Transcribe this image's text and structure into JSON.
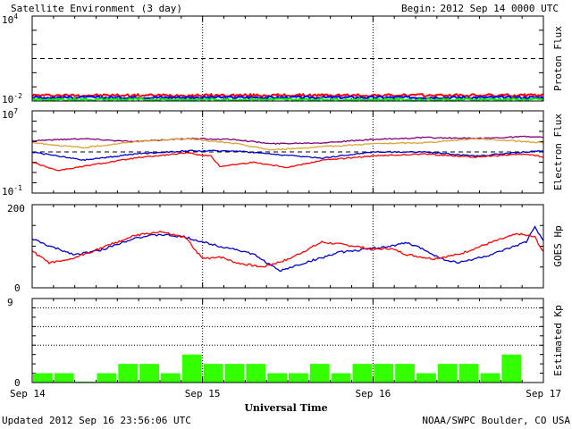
{
  "header": {
    "title": "Satellite Environment (3 day)",
    "begin_label": "Begin:",
    "begin_value": "2012 Sep 14 0000 UTC"
  },
  "footer": {
    "updated": "Updated 2012 Sep 16 23:56:06 UTC",
    "credit": "NOAA/SWPC Boulder, CO USA"
  },
  "x_axis": {
    "label": "Universal Time",
    "ticks": [
      "Sep 14",
      "Sep 15",
      "Sep 16",
      "Sep 17"
    ]
  },
  "chart_data": [
    {
      "type": "line",
      "name": "proton-flux",
      "ylabel": "Proton Flux",
      "scale": "log",
      "ylim_exp": [
        -2,
        4
      ],
      "tick_labels": [
        {
          "base": "10",
          "exp": "4"
        },
        {
          "base": "10",
          "exp": "-2"
        }
      ],
      "threshold_exp": 1,
      "x_days": [
        0,
        3
      ],
      "series": [
        {
          "color": "#ff0000",
          "points": [
            [
              0,
              -1.6
            ],
            [
              3,
              -1.6
            ]
          ]
        },
        {
          "color": "#0000ff",
          "points": [
            [
              0,
              -1.75
            ],
            [
              3,
              -1.75
            ]
          ]
        },
        {
          "color": "#00ee00",
          "points": [
            [
              0,
              -1.9
            ],
            [
              3,
              -1.9
            ]
          ]
        }
      ]
    },
    {
      "type": "line",
      "name": "electron-flux",
      "ylabel": "Electron Flux",
      "scale": "log",
      "ylim_exp": [
        -1,
        7
      ],
      "tick_labels": [
        {
          "base": "10",
          "exp": "7"
        },
        {
          "base": "10",
          "exp": "-1"
        }
      ],
      "threshold_exp": 3,
      "series": [
        {
          "color": "#800080",
          "points": [
            [
              0,
              4.1
            ],
            [
              0.3,
              4.3
            ],
            [
              0.6,
              4.0
            ],
            [
              0.9,
              4.3
            ],
            [
              1.2,
              4.2
            ],
            [
              1.4,
              3.8
            ],
            [
              1.7,
              3.9
            ],
            [
              2.0,
              4.2
            ],
            [
              2.3,
              4.4
            ],
            [
              2.6,
              4.3
            ],
            [
              2.9,
              4.5
            ],
            [
              3,
              4.4
            ]
          ]
        },
        {
          "color": "#e0a030",
          "points": [
            [
              0,
              3.9
            ],
            [
              0.3,
              3.4
            ],
            [
              0.6,
              4.0
            ],
            [
              0.9,
              4.3
            ],
            [
              1.2,
              3.8
            ],
            [
              1.4,
              3.2
            ],
            [
              1.7,
              3.5
            ],
            [
              2.0,
              3.8
            ],
            [
              2.3,
              3.9
            ],
            [
              2.6,
              4.3
            ],
            [
              2.9,
              4.0
            ],
            [
              3,
              3.9
            ]
          ]
        },
        {
          "color": "#0000cc",
          "points": [
            [
              0,
              3.0
            ],
            [
              0.3,
              2.2
            ],
            [
              0.6,
              2.8
            ],
            [
              0.9,
              3.1
            ],
            [
              1.2,
              3.1
            ],
            [
              1.4,
              2.8
            ],
            [
              1.7,
              2.4
            ],
            [
              2.0,
              3.0
            ],
            [
              2.3,
              3.0
            ],
            [
              2.6,
              2.6
            ],
            [
              2.9,
              3.0
            ],
            [
              3,
              3.1
            ]
          ]
        },
        {
          "color": "#ff0000",
          "points": [
            [
              0,
              2.0
            ],
            [
              0.15,
              1.2
            ],
            [
              0.3,
              1.6
            ],
            [
              0.6,
              2.4
            ],
            [
              0.9,
              2.9
            ],
            [
              1.05,
              2.6
            ],
            [
              1.1,
              1.6
            ],
            [
              1.3,
              2.0
            ],
            [
              1.5,
              1.5
            ],
            [
              1.7,
              2.2
            ],
            [
              2.0,
              2.6
            ],
            [
              2.3,
              2.8
            ],
            [
              2.6,
              2.5
            ],
            [
              2.9,
              2.8
            ],
            [
              3,
              2.5
            ]
          ]
        }
      ]
    },
    {
      "type": "line",
      "name": "goes-hp",
      "ylabel": "GOES Hp",
      "scale": "linear",
      "ylim": [
        0,
        200
      ],
      "tick_labels": [
        "200",
        "0"
      ],
      "series": [
        {
          "color": "#0000cc",
          "points": [
            [
              0,
              118
            ],
            [
              0.1,
              100
            ],
            [
              0.25,
              80
            ],
            [
              0.4,
              90
            ],
            [
              0.6,
              120
            ],
            [
              0.75,
              128
            ],
            [
              0.9,
              122
            ],
            [
              1.0,
              110
            ],
            [
              1.1,
              100
            ],
            [
              1.2,
              92
            ],
            [
              1.3,
              80
            ],
            [
              1.4,
              55
            ],
            [
              1.45,
              40
            ],
            [
              1.6,
              60
            ],
            [
              1.8,
              85
            ],
            [
              2.0,
              95
            ],
            [
              2.1,
              100
            ],
            [
              2.2,
              108
            ],
            [
              2.3,
              92
            ],
            [
              2.4,
              70
            ],
            [
              2.5,
              60
            ],
            [
              2.7,
              80
            ],
            [
              2.8,
              95
            ],
            [
              2.9,
              110
            ],
            [
              2.95,
              148
            ],
            [
              3,
              112
            ]
          ]
        },
        {
          "color": "#ff0000",
          "points": [
            [
              0,
              88
            ],
            [
              0.1,
              60
            ],
            [
              0.2,
              65
            ],
            [
              0.4,
              95
            ],
            [
              0.6,
              125
            ],
            [
              0.75,
              135
            ],
            [
              0.9,
              120
            ],
            [
              1.0,
              70
            ],
            [
              1.1,
              75
            ],
            [
              1.2,
              60
            ],
            [
              1.35,
              50
            ],
            [
              1.5,
              68
            ],
            [
              1.7,
              110
            ],
            [
              1.9,
              100
            ],
            [
              2.0,
              92
            ],
            [
              2.1,
              95
            ],
            [
              2.2,
              80
            ],
            [
              2.35,
              70
            ],
            [
              2.5,
              80
            ],
            [
              2.7,
              110
            ],
            [
              2.85,
              130
            ],
            [
              2.95,
              122
            ],
            [
              3,
              85
            ]
          ]
        }
      ]
    },
    {
      "type": "bar",
      "name": "estimated-kp",
      "ylabel": "Estimated Kp",
      "ylim": [
        0,
        9
      ],
      "tick_labels": [
        "9",
        "0"
      ],
      "dotted_levels": [
        4,
        6,
        8
      ],
      "color": "#33ff00",
      "values": [
        1,
        1,
        0.1,
        1,
        2,
        2,
        1,
        3,
        2,
        2,
        2,
        1,
        1,
        2,
        1,
        2,
        2,
        2,
        1,
        2,
        2,
        1,
        3,
        0
      ]
    }
  ]
}
